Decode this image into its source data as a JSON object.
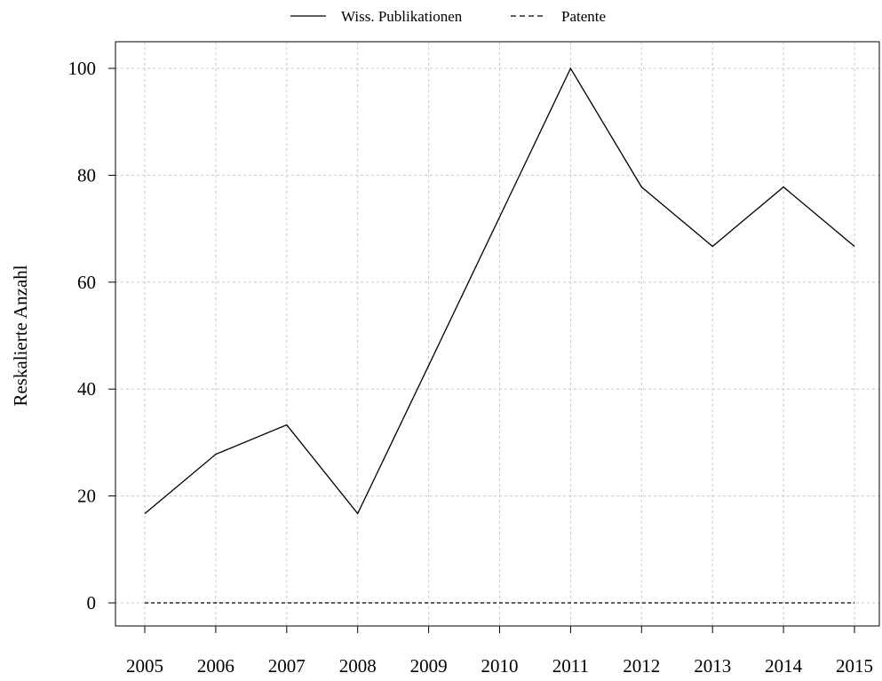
{
  "chart_data": {
    "type": "line",
    "title": "",
    "xlabel": "",
    "ylabel": "Reskalierte Anzahl",
    "categories": [
      "2005",
      "2006",
      "2007",
      "2008",
      "2009",
      "2010",
      "2011",
      "2012",
      "2013",
      "2014",
      "2015"
    ],
    "x": [
      2005,
      2006,
      2007,
      2008,
      2009,
      2010,
      2011,
      2012,
      2013,
      2014,
      2015
    ],
    "xlim": [
      2005,
      2015
    ],
    "ylim": [
      0,
      100
    ],
    "yticks": [
      0,
      20,
      40,
      60,
      80,
      100
    ],
    "grid": true,
    "legend_position": "top",
    "series": [
      {
        "name": "Wiss. Publikationen",
        "line_style": "solid",
        "color": "#000000",
        "values": [
          16.7,
          27.8,
          33.3,
          16.7,
          44.4,
          72.2,
          100,
          77.8,
          66.7,
          77.8,
          66.7
        ]
      },
      {
        "name": "Patente",
        "line_style": "dashed",
        "color": "#000000",
        "values": [
          0,
          0,
          0,
          0,
          0,
          0,
          0,
          0,
          0,
          0,
          0
        ]
      }
    ]
  }
}
